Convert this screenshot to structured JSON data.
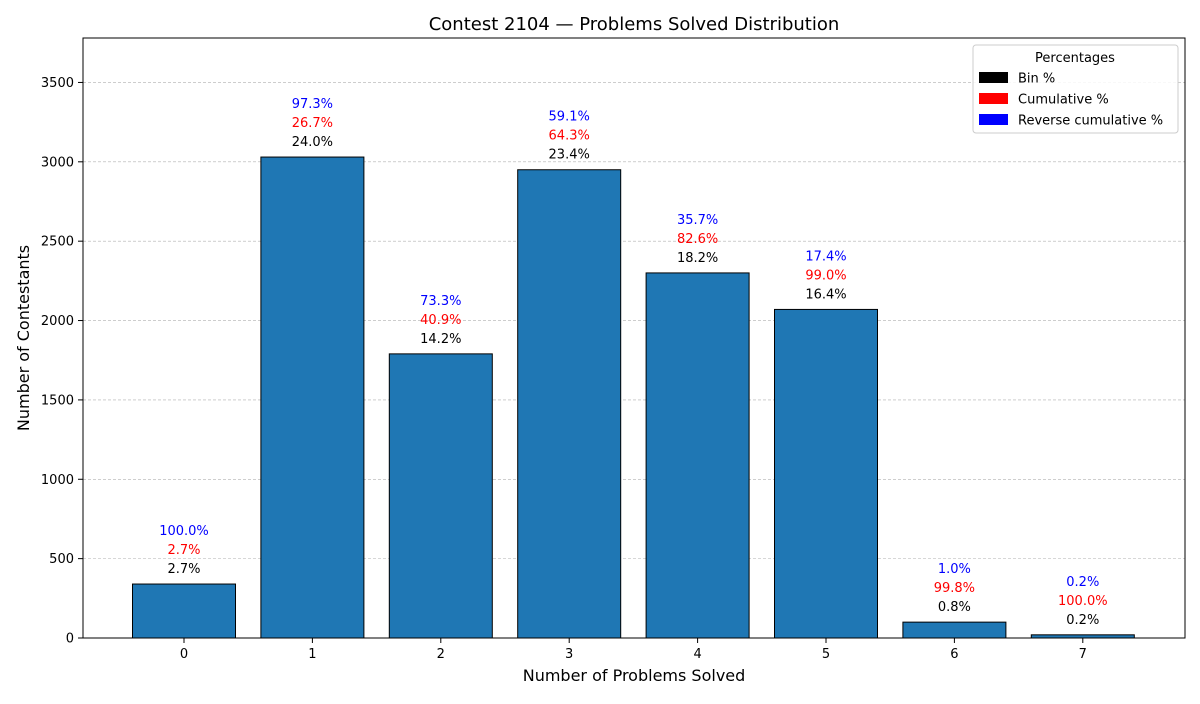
{
  "chart_data": {
    "type": "bar",
    "title": "Contest 2104 — Problems Solved Distribution",
    "xlabel": "Number of Problems Solved",
    "ylabel": "Number of Contestants",
    "categories": [
      "0",
      "1",
      "2",
      "3",
      "4",
      "5",
      "6",
      "7"
    ],
    "values": [
      340,
      3030,
      1790,
      2950,
      2300,
      2070,
      100,
      20
    ],
    "ylim": [
      0,
      3780
    ],
    "yticks": [
      0,
      500,
      1000,
      1500,
      2000,
      2500,
      3000,
      3500
    ],
    "grid": true,
    "bar_color": "#1f77b4",
    "bar_edge_color": "#000000",
    "labels": {
      "bin_pct": [
        "2.7%",
        "24.0%",
        "14.2%",
        "23.4%",
        "18.2%",
        "16.4%",
        "0.8%",
        "0.2%"
      ],
      "cumulative_pct": [
        "2.7%",
        "26.7%",
        "40.9%",
        "64.3%",
        "82.6%",
        "99.0%",
        "99.8%",
        "100.0%"
      ],
      "reverse_cumulative_pct": [
        "100.0%",
        "97.3%",
        "73.3%",
        "59.1%",
        "35.7%",
        "17.4%",
        "1.0%",
        "0.2%"
      ]
    },
    "label_colors": {
      "bin_pct": "#000000",
      "cumulative_pct": "#ff0000",
      "reverse_cumulative_pct": "#0000ff"
    },
    "legend": {
      "title": "Percentages",
      "placement": "top-right",
      "entries": [
        {
          "label": "Bin %",
          "color": "#000000"
        },
        {
          "label": "Cumulative %",
          "color": "#ff0000"
        },
        {
          "label": "Reverse cumulative %",
          "color": "#0000ff"
        }
      ]
    }
  }
}
